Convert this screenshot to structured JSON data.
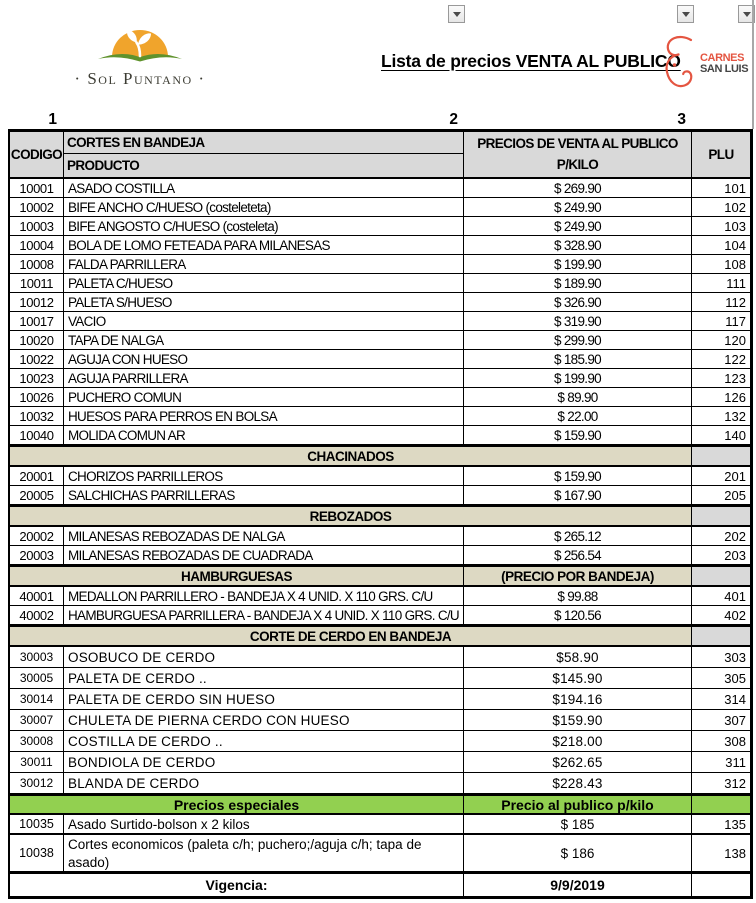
{
  "header": {
    "title": "Lista de precios VENTA AL PUBLICO",
    "logo_left": {
      "name": "Sol Puntano",
      "text": "· Sol Puntano ·",
      "sun_color": "#f0a42c",
      "leaf_color": "#5f922c"
    },
    "logo_right": {
      "name": "Carnes San Luis",
      "line1": "CARNES",
      "line2": "SAN LUIS",
      "accent": "#e45541"
    },
    "filter_buttons": [
      {
        "icon": "chevron-down-icon"
      },
      {
        "icon": "chevron-down-icon"
      },
      {
        "icon": "chevron-down-icon"
      }
    ]
  },
  "column_markers": [
    "1",
    "2",
    "3"
  ],
  "table": {
    "head": {
      "codigo": "CODIGO",
      "group": "CORTES EN BANDEJA",
      "product": "PRODUCTO",
      "price_line1": "PRECIOS DE VENTA AL PUBLICO",
      "price_line2": "P/KILO",
      "plu": "PLU"
    },
    "rows": [
      {
        "type": "item",
        "style": "n",
        "codigo": "10001",
        "producto": "ASADO COSTILLA",
        "precio": "$ 269.90",
        "plu": "101"
      },
      {
        "type": "item",
        "style": "n",
        "codigo": "10002",
        "producto": "BIFE ANCHO C/HUESO (costeleteta)",
        "precio": "$ 249.90",
        "plu": "102"
      },
      {
        "type": "item",
        "style": "n",
        "codigo": "10003",
        "producto": "BIFE ANGOSTO C/HUESO (costeleta)",
        "precio": "$ 249.90",
        "plu": "103"
      },
      {
        "type": "item",
        "style": "n",
        "codigo": "10004",
        "producto": "BOLA DE LOMO FETEADA PARA MILANESAS",
        "precio": "$ 328.90",
        "plu": "104"
      },
      {
        "type": "item",
        "style": "n",
        "codigo": "10008",
        "producto": "FALDA PARRILLERA",
        "precio": "$ 199.90",
        "plu": "108"
      },
      {
        "type": "item",
        "style": "n",
        "codigo": "10011",
        "producto": "PALETA C/HUESO",
        "precio": "$ 189.90",
        "plu": "111"
      },
      {
        "type": "item",
        "style": "n",
        "codigo": "10012",
        "producto": "PALETA S/HUESO",
        "precio": "$ 326.90",
        "plu": "112"
      },
      {
        "type": "item",
        "style": "n",
        "codigo": "10017",
        "producto": "VACIO",
        "precio": "$ 319.90",
        "plu": "117"
      },
      {
        "type": "item",
        "style": "n",
        "codigo": "10020",
        "producto": "TAPA DE NALGA",
        "precio": "$ 299.90",
        "plu": "120"
      },
      {
        "type": "item",
        "style": "n",
        "codigo": "10022",
        "producto": "AGUJA CON HUESO",
        "precio": "$ 185.90",
        "plu": "122"
      },
      {
        "type": "item",
        "style": "n",
        "codigo": "10023",
        "producto": "AGUJA PARRILLERA",
        "precio": "$ 199.90",
        "plu": "123"
      },
      {
        "type": "item",
        "style": "n",
        "codigo": "10026",
        "producto": "PUCHERO COMUN",
        "precio": "$ 89.90",
        "plu": "126"
      },
      {
        "type": "item",
        "style": "n",
        "codigo": "10032",
        "producto": "HUESOS PARA PERROS EN BOLSA",
        "precio": "$ 22.00",
        "plu": "132"
      },
      {
        "type": "item",
        "style": "n",
        "codigo": "10040",
        "producto": "MOLIDA COMUN AR",
        "precio": "$ 159.90",
        "plu": "140"
      },
      {
        "type": "section",
        "label": "CHACINADOS"
      },
      {
        "type": "item",
        "style": "n",
        "codigo": "20001",
        "producto": "CHORIZOS PARRILLEROS",
        "precio": "$ 159.90",
        "plu": "201"
      },
      {
        "type": "item",
        "style": "n",
        "codigo": "20005",
        "producto": "SALCHICHAS PARRILLERAS",
        "precio": "$ 167.90",
        "plu": "205"
      },
      {
        "type": "section",
        "label": "REBOZADOS"
      },
      {
        "type": "item",
        "style": "n",
        "codigo": "20002",
        "producto": "MILANESAS REBOZADAS DE NALGA",
        "precio": "$ 265.12",
        "plu": "202"
      },
      {
        "type": "item",
        "style": "n",
        "codigo": "20003",
        "producto": "MILANESAS REBOZADAS DE CUADRADA",
        "precio": "$ 256.54",
        "plu": "203"
      },
      {
        "type": "section",
        "label": "HAMBURGUESAS",
        "price_label": "(PRECIO POR BANDEJA)"
      },
      {
        "type": "item",
        "style": "n",
        "codigo": "40001",
        "producto": "MEDALLON PARRILLERO - BANDEJA X 4 UNID. X 110 GRS. C/U",
        "precio": "$ 99.88",
        "plu": "401"
      },
      {
        "type": "item",
        "style": "n",
        "codigo": "40002",
        "producto": "HAMBURGUESA PARRILLERA - BANDEJA X 4 UNID. X 110 GRS. C/U",
        "precio": "$ 120.56",
        "plu": "402"
      },
      {
        "type": "section",
        "label": "CORTE DE CERDO EN BANDEJA"
      },
      {
        "type": "item",
        "style": "a",
        "codigo": "30003",
        "producto": "OSOBUCO DE CERDO",
        "precio": "$58.90",
        "plu": "303"
      },
      {
        "type": "item",
        "style": "a",
        "codigo": "30005",
        "producto": "PALETA DE CERDO ..",
        "precio": "$145.90",
        "plu": "305"
      },
      {
        "type": "item",
        "style": "a",
        "codigo": "30014",
        "producto": "PALETA DE CERDO SIN HUESO",
        "precio": "$194.16",
        "plu": "314"
      },
      {
        "type": "item",
        "style": "a",
        "codigo": "30007",
        "producto": "CHULETA DE PIERNA CERDO CON HUESO",
        "precio": "$159.90",
        "plu": "307"
      },
      {
        "type": "item",
        "style": "a",
        "codigo": "30008",
        "producto": "COSTILLA DE CERDO ..",
        "precio": "$218.00",
        "plu": "308"
      },
      {
        "type": "item",
        "style": "a",
        "codigo": "30011",
        "producto": "BONDIOLA DE CERDO",
        "precio": "$262.65",
        "plu": "311"
      },
      {
        "type": "item",
        "style": "a",
        "codigo": "30012",
        "producto": "BLANDA DE CERDO",
        "precio": "$228.43",
        "plu": "312"
      },
      {
        "type": "green",
        "label": "Precios especiales",
        "price_label": "Precio al publico p/kilo"
      },
      {
        "type": "item",
        "style": "c",
        "codigo": "10035",
        "producto": "Asado Surtido-bolson x 2 kilos",
        "precio": "$ 185",
        "plu": "135"
      },
      {
        "type": "item",
        "style": "c",
        "tall": true,
        "codigo": "10038",
        "producto": "Cortes economicos (paleta c/h; puchero;/aguja c/h; tapa de asado)",
        "precio": "$ 186",
        "plu": "138"
      },
      {
        "type": "footer",
        "label": "Vigencia:",
        "value": "9/9/2019"
      }
    ]
  },
  "colors": {
    "header_gray": "#d9d9d9",
    "section_beige": "#ddd9c3",
    "special_green": "#92d050",
    "border": "#000000"
  }
}
